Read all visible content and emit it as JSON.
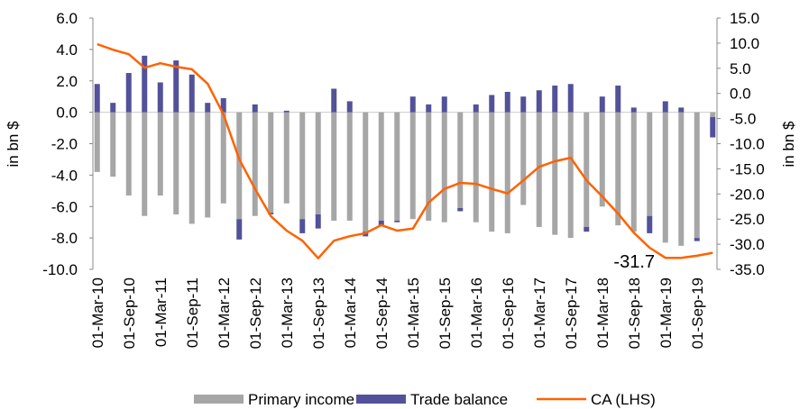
{
  "chart_data": {
    "type": "bar",
    "categories": [
      "01-Mar-10",
      null,
      "01-Sep-10",
      null,
      "01-Mar-11",
      null,
      "01-Sep-11",
      null,
      "01-Mar-12",
      null,
      "01-Sep-12",
      null,
      "01-Mar-13",
      null,
      "01-Sep-13",
      null,
      "01-Mar-14",
      null,
      "01-Sep-14",
      null,
      "01-Mar-15",
      null,
      "01-Sep-15",
      null,
      "01-Mar-16",
      null,
      "01-Sep-16",
      null,
      "01-Mar-17",
      null,
      "01-Sep-17",
      null,
      "01-Mar-18",
      null,
      "01-Sep-18",
      null,
      "01-Mar-19",
      null,
      "01-Sep-19",
      null
    ],
    "series": [
      {
        "name": "Primary income",
        "color": "#a6a6a6",
        "values": [
          -3.8,
          -4.1,
          -5.3,
          -6.6,
          -5.3,
          -6.5,
          -7.1,
          -6.7,
          -5.8,
          -6.8,
          -6.6,
          -6.4,
          -5.8,
          -6.8,
          -6.5,
          -6.9,
          -6.9,
          -7.6,
          -6.9,
          -6.9,
          -6.8,
          -6.9,
          -7.0,
          -6.1,
          -7.0,
          -7.6,
          -7.7,
          -5.9,
          -7.3,
          -7.8,
          -8.0,
          -7.3,
          -6.0,
          -7.2,
          -7.6,
          -6.6,
          -8.3,
          -8.5,
          -8.0,
          -0.3
        ]
      },
      {
        "name": "Trade balance",
        "color": "#525199",
        "values": [
          1.8,
          0.6,
          2.5,
          3.6,
          1.9,
          3.3,
          2.4,
          0.6,
          0.9,
          -1.3,
          0.5,
          -0.1,
          0.1,
          -0.9,
          -0.9,
          1.5,
          0.7,
          -0.3,
          -0.3,
          -0.1,
          1.0,
          0.5,
          1.0,
          -0.2,
          0.5,
          1.1,
          1.3,
          1.0,
          1.4,
          1.7,
          1.8,
          -0.3,
          1.0,
          1.7,
          0.3,
          -1.1,
          0.7,
          0.3,
          -0.2,
          -1.3
        ]
      },
      {
        "name": "CA (LHS)",
        "color": "#ff6200",
        "axis": "y2",
        "values": [
          9.8,
          8.7,
          7.8,
          5.1,
          6.0,
          5.3,
          4.8,
          1.9,
          -4.2,
          -13.1,
          -19.0,
          -24.4,
          -27.3,
          -29.3,
          -32.8,
          -29.3,
          -28.4,
          -27.8,
          -26.2,
          -27.3,
          -26.9,
          -21.7,
          -19.0,
          -17.8,
          -18.0,
          -19.0,
          -19.9,
          -17.3,
          -14.6,
          -13.5,
          -12.8,
          -17.3,
          -20.5,
          -23.9,
          -27.7,
          -30.7,
          -32.7,
          -32.7,
          -32.3,
          -31.7
        ]
      }
    ],
    "annotation": "-31.7",
    "ylabel": "in bn $",
    "y2label": "in bn $",
    "ylim": [
      -10,
      6
    ],
    "yticks": [
      {
        "value": -10,
        "label": "-10.0"
      },
      {
        "value": -8,
        "label": "-8.0"
      },
      {
        "value": -6,
        "label": "-6.0"
      },
      {
        "value": -4,
        "label": "-4.0"
      },
      {
        "value": -2,
        "label": "-2.0"
      },
      {
        "value": 0,
        "label": "0.0"
      },
      {
        "value": 2,
        "label": "2.0"
      },
      {
        "value": 4,
        "label": "4.0"
      },
      {
        "value": 6,
        "label": "6.0"
      }
    ],
    "y2lim": [
      -35,
      15
    ],
    "y2ticks": [
      {
        "value": -35,
        "label": "-35.0"
      },
      {
        "value": -30,
        "label": "-30.0"
      },
      {
        "value": -25,
        "label": "-25.0"
      },
      {
        "value": -20,
        "label": "-20.0"
      },
      {
        "value": -15,
        "label": "-15.0"
      },
      {
        "value": -10,
        "label": "-10.0"
      },
      {
        "value": -5,
        "label": "-5.0"
      },
      {
        "value": 0,
        "label": "0.0"
      },
      {
        "value": 5,
        "label": "5.0"
      },
      {
        "value": 10,
        "label": "10.0"
      },
      {
        "value": 15,
        "label": "15.0"
      }
    ],
    "stacked": true,
    "grid": false,
    "legend": "bottom"
  }
}
